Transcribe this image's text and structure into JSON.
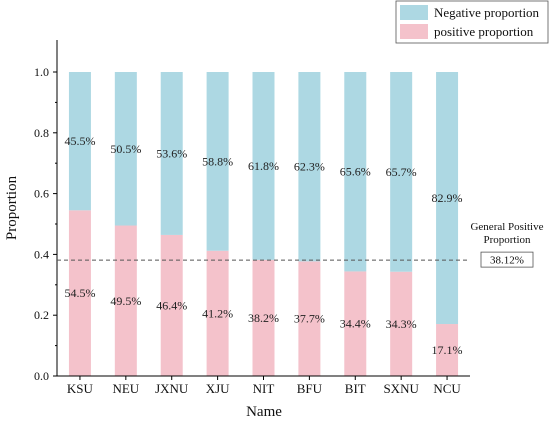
{
  "chart_data": {
    "type": "bar",
    "stacked": true,
    "xlabel": "Name",
    "ylabel": "Proportion",
    "ylim": [
      0,
      1.0
    ],
    "yticks": [
      "0.0",
      "0.2",
      "0.4",
      "0.6",
      "0.8",
      "1.0"
    ],
    "categories": [
      "KSU",
      "NEU",
      "JXNU",
      "XJU",
      "NIT",
      "BFU",
      "BIT",
      "SXNU",
      "NCU"
    ],
    "series": [
      {
        "name": "positive proportion",
        "color": "#f4c2cb",
        "values": [
          0.545,
          0.495,
          0.464,
          0.412,
          0.382,
          0.377,
          0.344,
          0.343,
          0.171
        ],
        "labels": [
          "54.5%",
          "49.5%",
          "46.4%",
          "41.2%",
          "38.2%",
          "37.7%",
          "34.4%",
          "34.3%",
          "17.1%"
        ]
      },
      {
        "name": "Negative proportion",
        "color": "#add8e3",
        "values": [
          0.455,
          0.505,
          0.536,
          0.588,
          0.618,
          0.623,
          0.656,
          0.657,
          0.829
        ],
        "labels": [
          "45.5%",
          "50.5%",
          "53.6%",
          "58.8%",
          "61.8%",
          "62.3%",
          "65.6%",
          "65.7%",
          "82.9%"
        ]
      }
    ],
    "legend": {
      "placement": "top-right",
      "order": [
        "Negative proportion",
        "positive proportion"
      ]
    },
    "reference_line": {
      "value": 0.3812,
      "style": "dashed",
      "title_line1": "General Positive",
      "title_line2": "Proportion",
      "value_label": "38.12%"
    },
    "grid": false
  }
}
